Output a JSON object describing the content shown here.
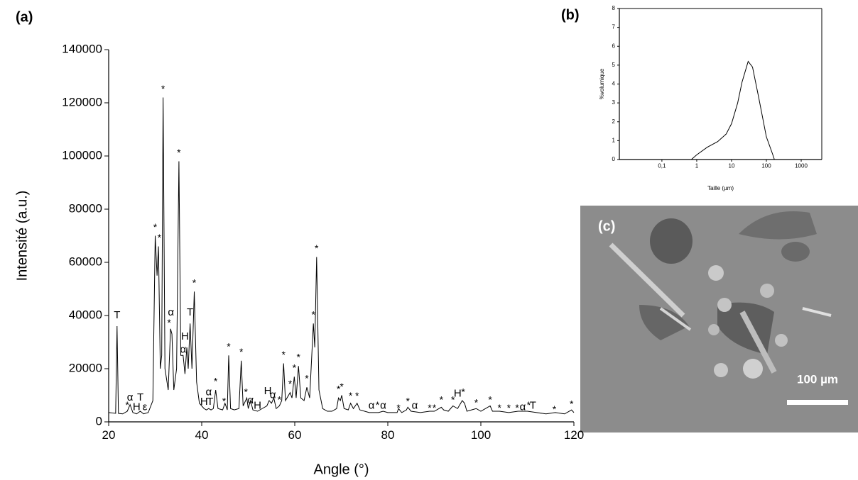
{
  "chart_data": [
    {
      "type": "line",
      "label": "(a)",
      "x_label": "Angle (°)",
      "y_label": "Intensité (a.u.)",
      "xlim": [
        20,
        120
      ],
      "ylim": [
        0,
        140000
      ],
      "xticks": [
        20,
        40,
        60,
        80,
        100,
        120
      ],
      "yticks": [
        0,
        20000,
        40000,
        60000,
        80000,
        100000,
        120000,
        140000
      ],
      "color": "#000000",
      "x": [
        20,
        21.5,
        21.8,
        22.1,
        23,
        24,
        24.6,
        25.2,
        26,
        26.8,
        27.5,
        28.5,
        29.5,
        30.0,
        30.4,
        30.7,
        31.1,
        31.4,
        31.7,
        32.1,
        32.8,
        33.3,
        33.6,
        34.0,
        34.6,
        35.1,
        35.5,
        36.0,
        36.4,
        36.8,
        37.1,
        37.5,
        37.9,
        38.4,
        38.9,
        39.5,
        40.5,
        41,
        41.5,
        42,
        42.5,
        43,
        43.5,
        44.5,
        45,
        45.5,
        45.8,
        46.2,
        47,
        48,
        48.5,
        48.9,
        49.7,
        50,
        50.5,
        51,
        52,
        53,
        54,
        54.5,
        55,
        55.5,
        56,
        56.7,
        57.2,
        57.6,
        58,
        59,
        59.4,
        59.9,
        60.3,
        60.8,
        61.3,
        62,
        62.6,
        63.2,
        64,
        64.3,
        64.7,
        65.2,
        66,
        67,
        68,
        69,
        69.4,
        69.8,
        70.1,
        70.6,
        71.5,
        72,
        72.6,
        73.4,
        74,
        76,
        78,
        79,
        80,
        82,
        82.3,
        83,
        84,
        84.3,
        85,
        87,
        89,
        90,
        91.5,
        92,
        93,
        94,
        95,
        96,
        96.5,
        97,
        99,
        100,
        102,
        102.5,
        104,
        106,
        108,
        110,
        112,
        114,
        116,
        118,
        119.5,
        120
      ],
      "values": [
        3500,
        3200,
        36000,
        3200,
        3000,
        4000,
        6500,
        3500,
        3000,
        4000,
        3000,
        3500,
        8000,
        70000,
        55000,
        66000,
        20000,
        25000,
        122000,
        20000,
        12000,
        35000,
        33000,
        12000,
        20000,
        98000,
        25000,
        25000,
        18000,
        28000,
        20000,
        37000,
        20000,
        49000,
        15000,
        7000,
        5000,
        4500,
        5000,
        4500,
        5000,
        12000,
        5000,
        4500,
        7000,
        4500,
        25000,
        5000,
        4500,
        5000,
        23000,
        6000,
        9000,
        5000,
        8000,
        4500,
        4000,
        5000,
        6000,
        8000,
        7000,
        9000,
        5000,
        6000,
        8000,
        22000,
        8000,
        11000,
        9000,
        17000,
        9000,
        21000,
        9000,
        8000,
        13000,
        9000,
        37000,
        28000,
        62000,
        12000,
        5000,
        4000,
        4000,
        5000,
        9000,
        8000,
        10000,
        5000,
        4500,
        7000,
        5000,
        7000,
        4500,
        3500,
        3500,
        4000,
        3500,
        3500,
        5000,
        3500,
        4500,
        5500,
        4000,
        3500,
        4000,
        4000,
        5500,
        4500,
        4000,
        6000,
        5000,
        8000,
        7000,
        4000,
        5000,
        4000,
        6000,
        4000,
        4000,
        3500,
        4000,
        4000,
        3500,
        3000,
        3500,
        3000,
        4500,
        3500
      ],
      "annotations": [
        {
          "text": "T",
          "x": 21.8,
          "y": 40000
        },
        {
          "text": "*",
          "x": 24.0,
          "y": 6000
        },
        {
          "text": "α",
          "x": 24.6,
          "y": 9000
        },
        {
          "text": "H",
          "x": 26.0,
          "y": 5500
        },
        {
          "text": "T",
          "x": 26.8,
          "y": 9000
        },
        {
          "text": "ε",
          "x": 27.8,
          "y": 5500
        },
        {
          "text": "*",
          "x": 30.0,
          "y": 73000
        },
        {
          "text": "*",
          "x": 30.9,
          "y": 69000
        },
        {
          "text": "*",
          "x": 31.7,
          "y": 125000
        },
        {
          "text": "α",
          "x": 33.4,
          "y": 41000
        },
        {
          "text": "*",
          "x": 33.0,
          "y": 37000
        },
        {
          "text": "*",
          "x": 35.1,
          "y": 101000
        },
        {
          "text": "H",
          "x": 36.4,
          "y": 32000
        },
        {
          "text": "α",
          "x": 36.0,
          "y": 27000
        },
        {
          "text": "T",
          "x": 37.5,
          "y": 41000
        },
        {
          "text": "*",
          "x": 38.4,
          "y": 52000
        },
        {
          "text": "α",
          "x": 41.5,
          "y": 11000
        },
        {
          "text": "H",
          "x": 40.5,
          "y": 7500
        },
        {
          "text": "T",
          "x": 41.8,
          "y": 7500
        },
        {
          "text": "*",
          "x": 43.0,
          "y": 15000
        },
        {
          "text": "*",
          "x": 44.8,
          "y": 7500
        },
        {
          "text": "*",
          "x": 45.8,
          "y": 28000
        },
        {
          "text": "*",
          "x": 48.5,
          "y": 26000
        },
        {
          "text": "*",
          "x": 49.5,
          "y": 11000
        },
        {
          "text": "α",
          "x": 50.5,
          "y": 8000
        },
        {
          "text": "H",
          "x": 52.0,
          "y": 6000
        },
        {
          "text": "H",
          "x": 54.2,
          "y": 11500
        },
        {
          "text": "α",
          "x": 55.3,
          "y": 10000
        },
        {
          "text": "*",
          "x": 56.7,
          "y": 8000
        },
        {
          "text": "*",
          "x": 57.6,
          "y": 25000
        },
        {
          "text": "*",
          "x": 59.0,
          "y": 14000
        },
        {
          "text": "*",
          "x": 59.9,
          "y": 20000
        },
        {
          "text": "*",
          "x": 60.8,
          "y": 24000
        },
        {
          "text": "*",
          "x": 62.6,
          "y": 16000
        },
        {
          "text": "*",
          "x": 64.0,
          "y": 40000
        },
        {
          "text": "*",
          "x": 64.7,
          "y": 65000
        },
        {
          "text": "*",
          "x": 69.4,
          "y": 12000
        },
        {
          "text": "*",
          "x": 70.1,
          "y": 13000
        },
        {
          "text": "*",
          "x": 72.0,
          "y": 9500
        },
        {
          "text": "*",
          "x": 73.4,
          "y": 9500
        },
        {
          "text": "α",
          "x": 76.5,
          "y": 6000
        },
        {
          "text": "*",
          "x": 77.8,
          "y": 6000
        },
        {
          "text": "α",
          "x": 79.0,
          "y": 6000
        },
        {
          "text": "*",
          "x": 82.3,
          "y": 5000
        },
        {
          "text": "*",
          "x": 84.3,
          "y": 7500
        },
        {
          "text": "α",
          "x": 85.8,
          "y": 6000
        },
        {
          "text": "*",
          "x": 89.0,
          "y": 5000
        },
        {
          "text": "*",
          "x": 90.0,
          "y": 5000
        },
        {
          "text": "*",
          "x": 91.5,
          "y": 8000
        },
        {
          "text": "*",
          "x": 94.0,
          "y": 8000
        },
        {
          "text": "H",
          "x": 95.0,
          "y": 10500
        },
        {
          "text": "*",
          "x": 96.2,
          "y": 11000
        },
        {
          "text": "*",
          "x": 99.0,
          "y": 7000
        },
        {
          "text": "*",
          "x": 102.0,
          "y": 8000
        },
        {
          "text": "*",
          "x": 104.0,
          "y": 5000
        },
        {
          "text": "*",
          "x": 106.0,
          "y": 5000
        },
        {
          "text": "*",
          "x": 107.8,
          "y": 5000
        },
        {
          "text": "α",
          "x": 109.0,
          "y": 5500
        },
        {
          "text": "*",
          "x": 110.3,
          "y": 6000
        },
        {
          "text": "T",
          "x": 111.2,
          "y": 6000
        },
        {
          "text": "*",
          "x": 115.8,
          "y": 4500
        },
        {
          "text": "*",
          "x": 119.5,
          "y": 6500
        }
      ]
    },
    {
      "type": "line",
      "label": "(b)",
      "x_label": "Taille (µm)",
      "y_label": "%volumique",
      "xlim": [
        0.006,
        3900
      ],
      "ylim": [
        0,
        8
      ],
      "log_x": true,
      "xticks": [
        {
          "value": 0.1,
          "label": "0,1"
        },
        1,
        10,
        100,
        1000
      ],
      "yticks": [
        0,
        1,
        2,
        3,
        4,
        5,
        6,
        7,
        8
      ],
      "color": "#000000",
      "x": [
        0.006,
        0.7,
        1,
        2,
        4,
        7,
        10,
        15,
        20,
        30,
        40,
        60,
        100,
        150,
        170,
        3900
      ],
      "values": [
        0,
        0,
        0.25,
        0.65,
        0.95,
        1.35,
        1.9,
        3,
        4.1,
        5.2,
        4.9,
        3.3,
        1.2,
        0.3,
        0,
        0
      ]
    }
  ],
  "image": {
    "label": "(c)",
    "scale_bar": "100 µm"
  }
}
